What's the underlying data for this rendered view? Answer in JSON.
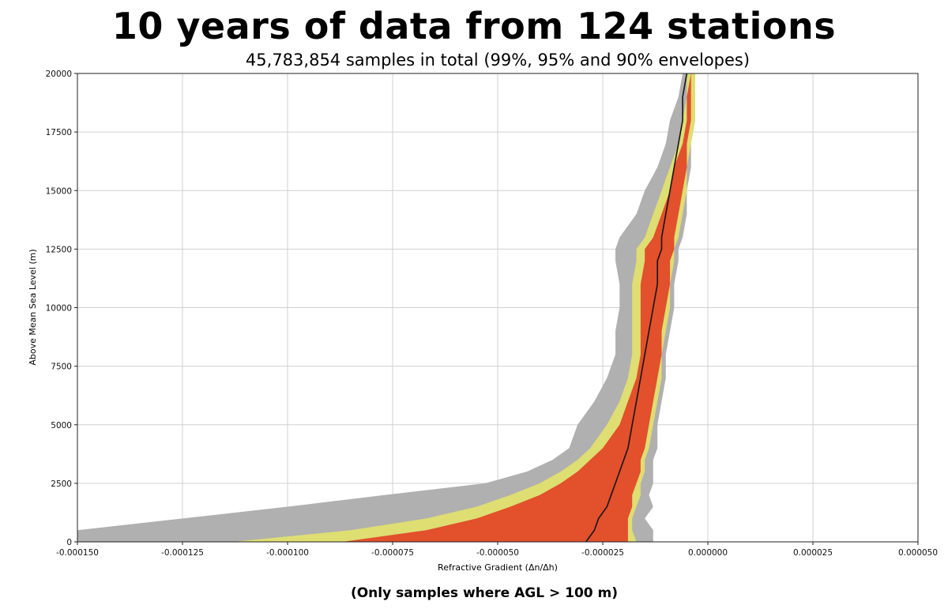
{
  "header": {
    "title": "10 years of data from 124 stations",
    "subtitle": "45,783,854 samples in total (99%, 95% and 90% envelopes)"
  },
  "footer": {
    "note": "(Only samples where AGL > 100 m)"
  },
  "colors": {
    "env99": "#b0b0b0",
    "env95": "#dede72",
    "env90": "#e2502c",
    "median": "#151515",
    "grid": "#d0d0d0"
  },
  "chart_data": {
    "type": "area",
    "title": "10 years of data from 124 stations",
    "subtitle": "45,783,854 samples in total (99%, 95% and 90% envelopes)",
    "xlabel": "Refractive Gradient (Δn/Δh)",
    "ylabel": "Above Mean Sea Level (m)",
    "xlim": [
      -0.00015,
      5e-05
    ],
    "ylim": [
      0,
      20000
    ],
    "x_ticks": [
      "-0.000150",
      "-0.000125",
      "-0.000100",
      "-0.000075",
      "-0.000050",
      "-0.000025",
      "0.000000",
      "0.000025",
      "0.000050"
    ],
    "y_ticks": [
      "0",
      "2500",
      "5000",
      "7500",
      "10000",
      "12500",
      "15000",
      "17500",
      "20000"
    ],
    "x_tick_values": [
      -0.00015,
      -0.000125,
      -0.0001,
      -7.5e-05,
      -5e-05,
      -2.5e-05,
      0,
      2.5e-05,
      5e-05
    ],
    "y_tick_values": [
      0,
      2500,
      5000,
      7500,
      10000,
      12500,
      15000,
      17500,
      20000
    ],
    "grid": true,
    "altitude": [
      0,
      500,
      1000,
      1500,
      2000,
      2500,
      3000,
      3500,
      4000,
      5000,
      6000,
      7000,
      8000,
      9000,
      10000,
      11000,
      12000,
      12500,
      13000,
      14000,
      15000,
      16000,
      17000,
      18000,
      19000,
      20000
    ],
    "series": [
      {
        "name": "99% envelope",
        "lower": [
          -0.00015,
          -0.00015,
          -0.000125,
          -0.0001,
          -7.7e-05,
          -5.3e-05,
          -4.3e-05,
          -3.7e-05,
          -3.3e-05,
          -3.1e-05,
          -2.7e-05,
          -2.4e-05,
          -2.2e-05,
          -2.2e-05,
          -2.1e-05,
          -2.1e-05,
          -2.2e-05,
          -2.2e-05,
          -2.1e-05,
          -1.7e-05,
          -1.5e-05,
          -1.2e-05,
          -1e-05,
          -9e-06,
          -7e-06,
          -6e-06
        ],
        "upper": [
          -1.3e-05,
          -1.3e-05,
          -1.5e-05,
          -1.3e-05,
          -1.4e-05,
          -1.3e-05,
          -1.3e-05,
          -1.3e-05,
          -1.2e-05,
          -1.2e-05,
          -1.1e-05,
          -1e-05,
          -1e-05,
          -9e-06,
          -8e-06,
          -8e-06,
          -7e-06,
          -7e-06,
          -6e-06,
          -5e-06,
          -5e-06,
          -4e-06,
          -4e-06,
          -3e-06,
          -3e-06,
          -3e-06
        ]
      },
      {
        "name": "95% envelope",
        "lower": [
          -0.000113,
          -8.5e-05,
          -6.7e-05,
          -5.5e-05,
          -4.7e-05,
          -4e-05,
          -3.5e-05,
          -3.1e-05,
          -2.8e-05,
          -2.4e-05,
          -2.1e-05,
          -1.9e-05,
          -1.8e-05,
          -1.8e-05,
          -1.8e-05,
          -1.8e-05,
          -1.7e-05,
          -1.7e-05,
          -1.5e-05,
          -1.3e-05,
          -1.1e-05,
          -9e-06,
          -7e-06,
          -6e-06,
          -5e-06,
          -5e-06
        ],
        "upper": [
          -1.7e-05,
          -1.8e-05,
          -1.8e-05,
          -1.7e-05,
          -1.6e-05,
          -1.6e-05,
          -1.5e-05,
          -1.5e-05,
          -1.4e-05,
          -1.3e-05,
          -1.2e-05,
          -1.1e-05,
          -1.1e-05,
          -1e-05,
          -9e-06,
          -9e-06,
          -8e-06,
          -8e-06,
          -7e-06,
          -6e-06,
          -5e-06,
          -5e-06,
          -4e-06,
          -3e-06,
          -3e-06,
          -3e-06
        ]
      },
      {
        "name": "90% envelope",
        "lower": [
          -8.7e-05,
          -6.7e-05,
          -5.5e-05,
          -4.7e-05,
          -4e-05,
          -3.5e-05,
          -3.1e-05,
          -2.8e-05,
          -2.5e-05,
          -2.1e-05,
          -1.9e-05,
          -1.7e-05,
          -1.6e-05,
          -1.6e-05,
          -1.6e-05,
          -1.6e-05,
          -1.5e-05,
          -1.5e-05,
          -1.3e-05,
          -1.1e-05,
          -9e-06,
          -8e-06,
          -6e-06,
          -5e-06,
          -5e-06,
          -4e-06
        ],
        "upper": [
          -1.9e-05,
          -1.9e-05,
          -1.9e-05,
          -1.8e-05,
          -1.8e-05,
          -1.7e-05,
          -1.6e-05,
          -1.6e-05,
          -1.5e-05,
          -1.4e-05,
          -1.3e-05,
          -1.2e-05,
          -1.1e-05,
          -1.1e-05,
          -1e-05,
          -9e-06,
          -9e-06,
          -8e-06,
          -8e-06,
          -7e-06,
          -6e-06,
          -5e-06,
          -5e-06,
          -4e-06,
          -4e-06,
          -4e-06
        ]
      },
      {
        "name": "median",
        "values": [
          -2.9e-05,
          -2.7e-05,
          -2.6e-05,
          -2.4e-05,
          -2.3e-05,
          -2.2e-05,
          -2.1e-05,
          -2e-05,
          -1.9e-05,
          -1.8e-05,
          -1.7e-05,
          -1.6e-05,
          -1.5e-05,
          -1.4e-05,
          -1.3e-05,
          -1.2e-05,
          -1.2e-05,
          -1.1e-05,
          -1.1e-05,
          -1e-05,
          -9e-06,
          -8e-06,
          -7e-06,
          -6e-06,
          -6e-06,
          -5e-06
        ]
      }
    ]
  }
}
